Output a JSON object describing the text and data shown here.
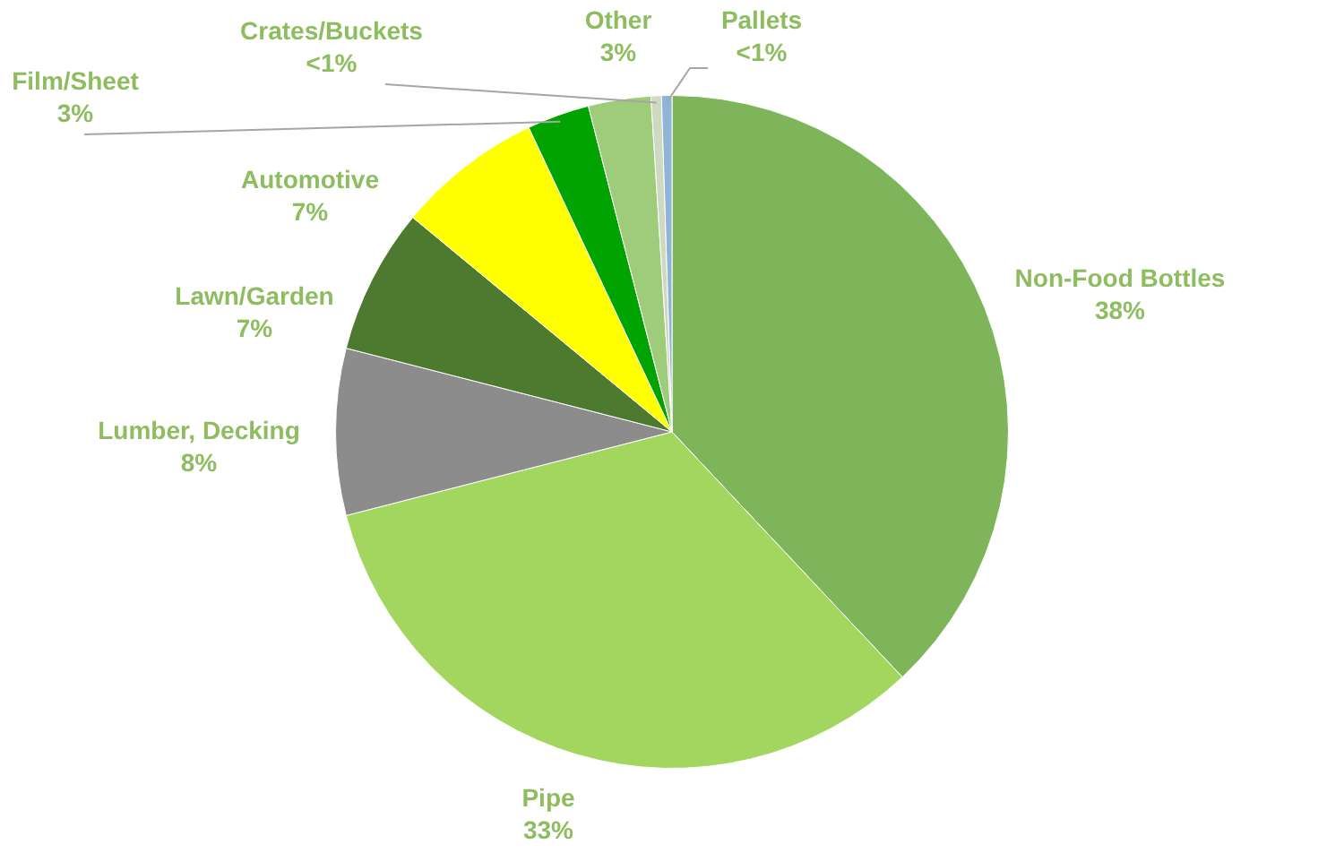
{
  "chart_data": {
    "type": "pie",
    "categories": [
      "Non-Food Bottles",
      "Pipe",
      "Lumber, Decking",
      "Lawn/Garden",
      "Automotive",
      "Film/Sheet",
      "Other",
      "Crates/Buckets",
      "Pallets"
    ],
    "values": [
      38,
      33,
      8,
      7,
      7,
      3,
      3,
      0.5,
      0.5
    ],
    "value_labels": [
      "38%",
      "33%",
      "8%",
      "7%",
      "7%",
      "3%",
      "3%",
      "<1%",
      "<1%"
    ],
    "colors": [
      "#7fb55a",
      "#a2d65f",
      "#8c8c8c",
      "#4e7a30",
      "#ffff00",
      "#00a300",
      "#9fcc7a",
      "#cfd8c0",
      "#8fb4d6"
    ],
    "legend": false
  }
}
